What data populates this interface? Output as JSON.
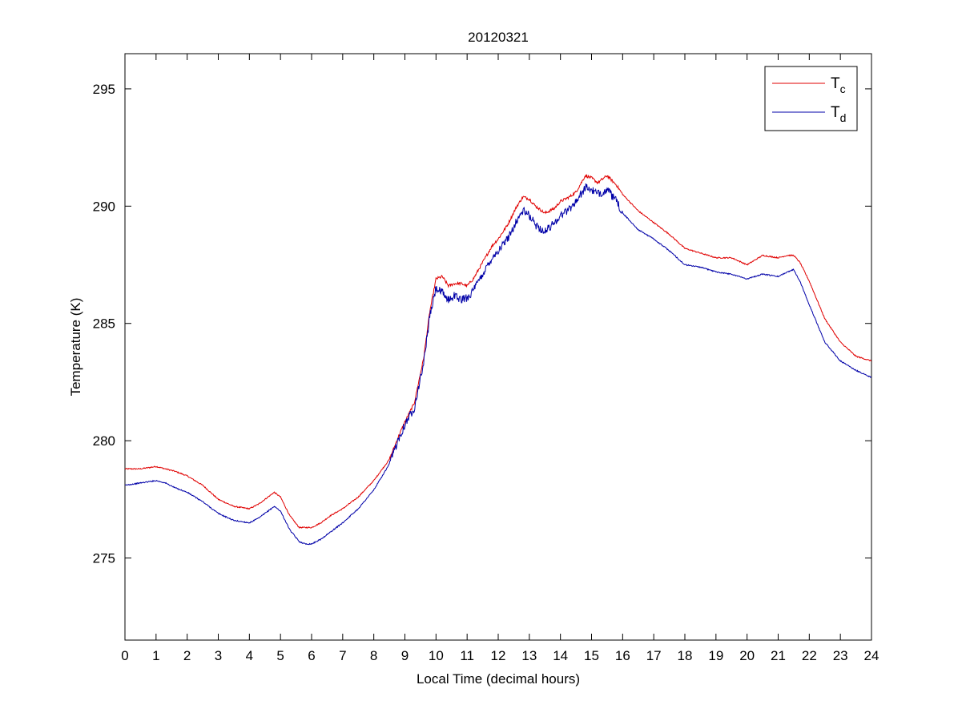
{
  "chart_data": {
    "type": "line",
    "title": "20120321",
    "xlabel": "Local Time (decimal hours)",
    "ylabel": "Temperature (K)",
    "xlim": [
      0,
      24
    ],
    "ylim": [
      271.5,
      296.5
    ],
    "xticks": [
      0,
      1,
      2,
      3,
      4,
      5,
      6,
      7,
      8,
      9,
      10,
      11,
      12,
      13,
      14,
      15,
      16,
      17,
      18,
      19,
      20,
      21,
      22,
      23,
      24
    ],
    "yticks": [
      275,
      280,
      285,
      290,
      295
    ],
    "grid": false,
    "legend_position": "top-right",
    "series": [
      {
        "name": "T",
        "subscript": "c",
        "color": "#e00000",
        "x": [
          0,
          0.5,
          1,
          1.3,
          1.6,
          2,
          2.5,
          3,
          3.5,
          4,
          4.3,
          4.6,
          4.8,
          5,
          5.3,
          5.6,
          5.8,
          6,
          6.3,
          6.6,
          7,
          7.5,
          8,
          8.5,
          8.8,
          9,
          9.3,
          9.6,
          9.8,
          10,
          10.2,
          10.4,
          10.6,
          10.8,
          11,
          11.2,
          11.5,
          11.8,
          12,
          12.3,
          12.6,
          12.8,
          13,
          13.2,
          13.5,
          13.8,
          14,
          14.3,
          14.5,
          14.8,
          15,
          15.2,
          15.5,
          15.8,
          16,
          16.5,
          17,
          17.5,
          18,
          18.5,
          19,
          19.5,
          20,
          20.5,
          21,
          21.3,
          21.5,
          21.7,
          22,
          22.5,
          23,
          23.5,
          24
        ],
        "y": [
          278.8,
          278.8,
          278.9,
          278.8,
          278.7,
          278.5,
          278.1,
          277.5,
          277.2,
          277.1,
          277.3,
          277.6,
          277.8,
          277.6,
          276.8,
          276.3,
          276.3,
          276.3,
          276.5,
          276.8,
          277.1,
          277.6,
          278.3,
          279.2,
          280.2,
          280.8,
          281.6,
          283.5,
          285.5,
          286.9,
          287.0,
          286.6,
          286.7,
          286.7,
          286.6,
          286.9,
          287.6,
          288.3,
          288.6,
          289.2,
          290.0,
          290.4,
          290.3,
          290.0,
          289.7,
          289.9,
          290.2,
          290.4,
          290.6,
          291.3,
          291.2,
          291.0,
          291.3,
          290.9,
          290.5,
          289.8,
          289.3,
          288.8,
          288.2,
          288.0,
          287.8,
          287.8,
          287.5,
          287.9,
          287.8,
          287.9,
          287.9,
          287.6,
          286.8,
          285.2,
          284.2,
          283.6,
          283.4
        ]
      },
      {
        "name": "T",
        "subscript": "d",
        "color": "#0000a8",
        "x": [
          0,
          0.5,
          1,
          1.3,
          1.6,
          2,
          2.5,
          3,
          3.5,
          4,
          4.3,
          4.6,
          4.8,
          5,
          5.3,
          5.6,
          5.8,
          6,
          6.3,
          6.6,
          7,
          7.5,
          8,
          8.5,
          8.8,
          9,
          9.3,
          9.6,
          9.8,
          10,
          10.2,
          10.4,
          10.6,
          10.8,
          11,
          11.2,
          11.5,
          11.8,
          12,
          12.3,
          12.6,
          12.8,
          13,
          13.2,
          13.5,
          13.8,
          14,
          14.3,
          14.5,
          14.8,
          15,
          15.2,
          15.5,
          15.8,
          16,
          16.5,
          17,
          17.5,
          18,
          18.5,
          19,
          19.5,
          20,
          20.5,
          21,
          21.3,
          21.5,
          21.7,
          22,
          22.5,
          23,
          23.5,
          24
        ],
        "y": [
          278.1,
          278.2,
          278.3,
          278.2,
          278.0,
          277.8,
          277.4,
          276.9,
          276.6,
          276.5,
          276.7,
          277.0,
          277.2,
          277.0,
          276.2,
          275.7,
          275.6,
          275.6,
          275.8,
          276.1,
          276.5,
          277.1,
          277.9,
          279.0,
          280.1,
          280.7,
          281.4,
          283.3,
          285.3,
          286.5,
          286.3,
          286.0,
          286.2,
          286.0,
          286.1,
          286.4,
          287.1,
          287.8,
          288.1,
          288.6,
          289.4,
          289.8,
          289.6,
          289.2,
          288.9,
          289.3,
          289.6,
          289.9,
          290.2,
          290.8,
          290.7,
          290.5,
          290.7,
          290.2,
          289.7,
          289.0,
          288.6,
          288.1,
          287.5,
          287.4,
          287.2,
          287.1,
          286.9,
          287.1,
          287.0,
          287.2,
          287.3,
          286.8,
          285.8,
          284.2,
          283.4,
          283.0,
          282.7
        ]
      }
    ]
  }
}
